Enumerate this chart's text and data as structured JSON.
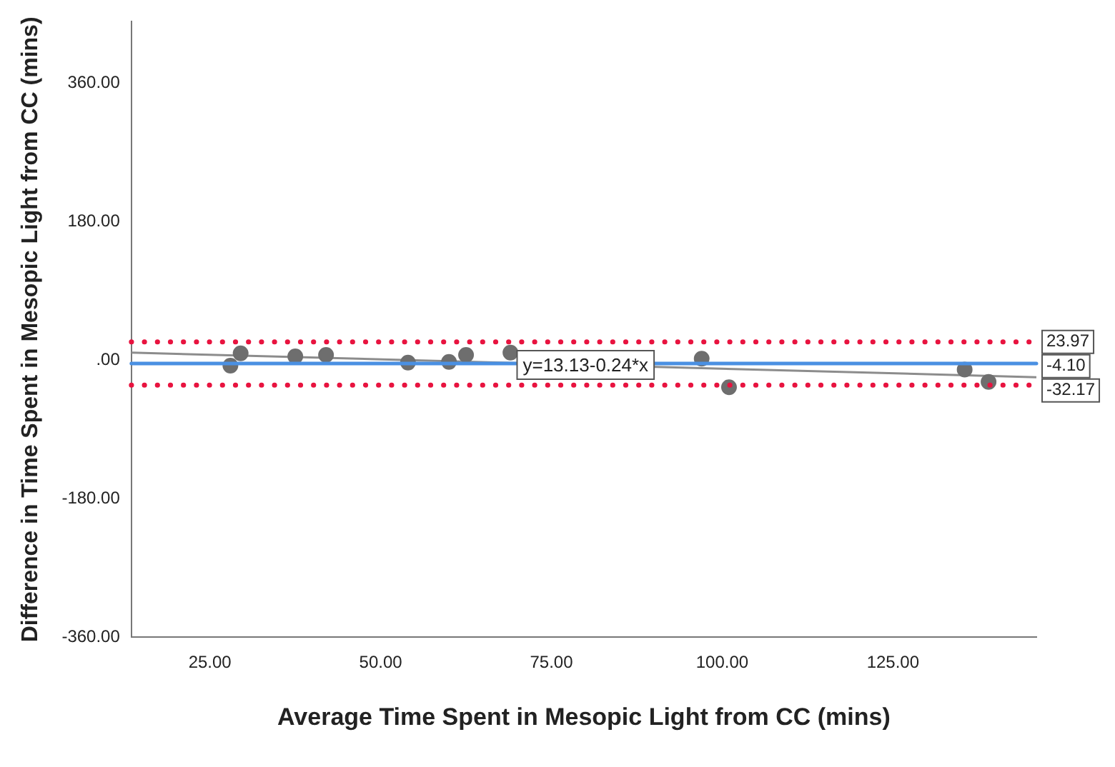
{
  "chart_data": {
    "type": "scatter",
    "xlabel": "Average Time Spent in Mesopic Light from CC (mins)",
    "ylabel": "Difference in Time Spent in Mesopic Light from CC (mins)",
    "series": [
      {
        "color": "#6e6e6e",
        "marker": "circle",
        "x": [
          28,
          29.5,
          37.5,
          42,
          54,
          60,
          62.5,
          69,
          97,
          101,
          135.5,
          139
        ],
        "values": [
          -7,
          9,
          5,
          7,
          -3,
          -2,
          7,
          10,
          2,
          -35,
          -12,
          -28
        ]
      },
      {
        "type": "line",
        "color": "#8c8c8c",
        "x": [
          13.5,
          146
        ],
        "values": [
          10,
          -22
        ]
      }
    ],
    "xlim": [
      13.5,
      146
    ],
    "ylim": [
      -360,
      440
    ],
    "xticks": [
      {
        "value": 25,
        "label": "25.00"
      },
      {
        "value": 50,
        "label": "50.00"
      },
      {
        "value": 75,
        "label": "75.00"
      },
      {
        "value": 100,
        "label": "100.00"
      },
      {
        "value": 125,
        "label": "125.00"
      }
    ],
    "yticks": [
      {
        "value": -360,
        "label": "-360.00"
      },
      {
        "value": -180,
        "label": "-180.00"
      },
      {
        "value": 0,
        "label": ".00"
      },
      {
        "value": 180,
        "label": "180.00"
      },
      {
        "value": 360,
        "label": "360.00"
      }
    ],
    "ref_lines": [
      {
        "axis": "y",
        "value": 23.97,
        "label": "23.97",
        "color": "#e8133f",
        "line_style": "dotted"
      },
      {
        "axis": "y",
        "value": -4.1,
        "label": "-4.10",
        "color": "#4a90e2",
        "line_style": "solid"
      },
      {
        "axis": "y",
        "value": -32.17,
        "label": "-32.17",
        "color": "#e8133f",
        "line_style": "dotted"
      }
    ],
    "annotations": [
      {
        "text": "y=13.13-0.24*x",
        "x": 80,
        "y": -6
      }
    ],
    "grid": false,
    "legend": false
  }
}
